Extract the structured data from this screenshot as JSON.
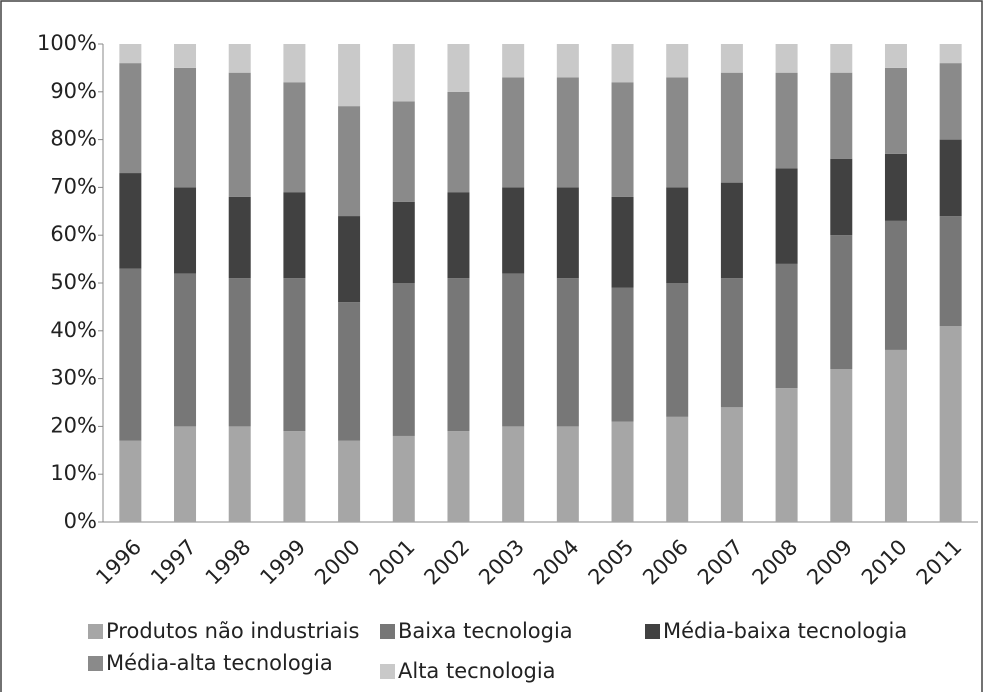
{
  "chart_data": {
    "type": "stacked_bar",
    "categories": [
      "1996",
      "1997",
      "1998",
      "1999",
      "2000",
      "2001",
      "2002",
      "2003",
      "2004",
      "2005",
      "2006",
      "2007",
      "2008",
      "2009",
      "2010",
      "2011"
    ],
    "series": [
      {
        "name": "Produtos não industriais",
        "color": "#a6a6a6",
        "values": [
          17,
          20,
          20,
          19,
          17,
          18,
          19,
          20,
          20,
          21,
          22,
          24,
          28,
          32,
          36,
          41
        ]
      },
      {
        "name": "Baixa tecnologia",
        "color": "#777777",
        "values": [
          36,
          32,
          31,
          32,
          29,
          32,
          32,
          32,
          31,
          28,
          28,
          27,
          26,
          28,
          27,
          23
        ]
      },
      {
        "name": "Média-baixa tecnologia",
        "color": "#414141",
        "values": [
          20,
          18,
          17,
          18,
          18,
          17,
          18,
          18,
          19,
          19,
          20,
          20,
          20,
          16,
          14,
          16
        ]
      },
      {
        "name": "Média-alta tecnologia",
        "color": "#8a8a8a",
        "values": [
          23,
          25,
          26,
          23,
          23,
          21,
          21,
          23,
          23,
          24,
          23,
          23,
          20,
          18,
          18,
          16
        ]
      },
      {
        "name": "Alta tecnologia",
        "color": "#c9c9c9",
        "values": [
          4,
          5,
          6,
          8,
          13,
          12,
          10,
          7,
          7,
          8,
          7,
          6,
          6,
          6,
          5,
          4
        ]
      }
    ],
    "ylim": [
      0,
      100
    ],
    "yticks": [
      {
        "value": 0,
        "label": "0%"
      },
      {
        "value": 10,
        "label": "10%"
      },
      {
        "value": 20,
        "label": "20%"
      },
      {
        "value": 30,
        "label": "30%"
      },
      {
        "value": 40,
        "label": "40%"
      },
      {
        "value": 50,
        "label": "50%"
      },
      {
        "value": 60,
        "label": "60%"
      },
      {
        "value": 70,
        "label": "70%"
      },
      {
        "value": 80,
        "label": "80%"
      },
      {
        "value": 90,
        "label": "90%"
      },
      {
        "value": 100,
        "label": "100%"
      }
    ],
    "grid": false
  }
}
